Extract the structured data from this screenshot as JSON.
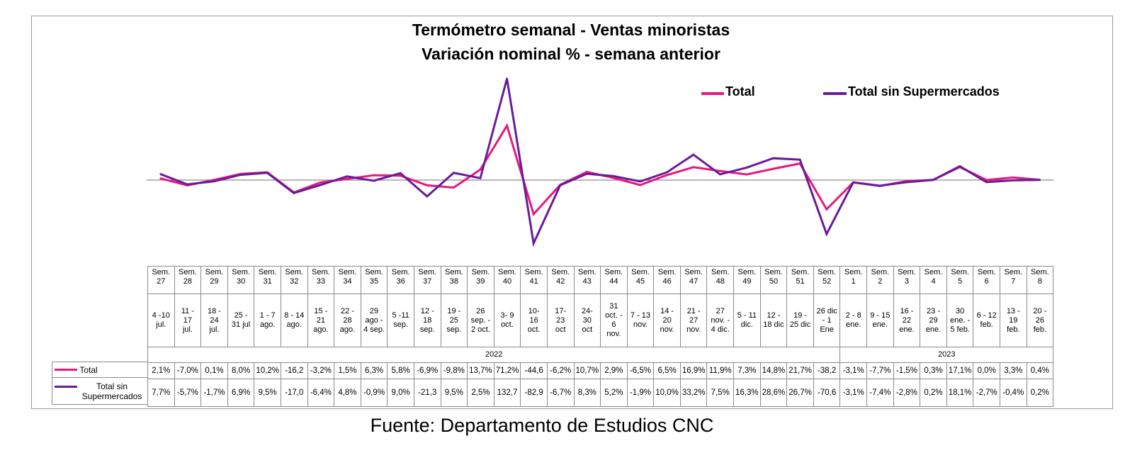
{
  "chart_data": {
    "type": "line",
    "title": "Termómetro semanal - Ventas minoristas",
    "subtitle": "Variación nominal % - semana anterior",
    "weeks": [
      "Sem.\n27",
      "Sem.\n28",
      "Sem.\n29",
      "Sem.\n30",
      "Sem.\n31",
      "Sem.\n32",
      "Sem.\n33",
      "Sem.\n34",
      "Sem.\n35",
      "Sem.\n36",
      "Sem.\n37",
      "Sem.\n38",
      "Sem.\n39",
      "Sem.\n40",
      "Sem.\n41",
      "Sem.\n42",
      "Sem.\n43",
      "Sem.\n44",
      "Sem.\n45",
      "Sem.\n46",
      "Sem.\n47",
      "Sem.\n48",
      "Sem.\n49",
      "Sem.\n50",
      "Sem.\n51",
      "Sem.\n52",
      "Sem.\n1",
      "Sem.\n2",
      "Sem.\n3",
      "Sem.\n4",
      "Sem.\n5",
      "Sem.\n6",
      "Sem.\n7",
      "Sem.\n8"
    ],
    "ranges": [
      "4 -10\njul.",
      "11 -\n17\njul.",
      "18 -\n24\njul.",
      "25 -\n31 jul",
      "1 - 7\nago.",
      "8 - 14\nago.",
      "15 -\n21\nago.",
      "22 -\n28\nago.",
      "29\nago -\n4 sep.",
      "5 -11\nsep.",
      "12 -\n18\nsep.",
      "19 -\n25\nsep.",
      "26\nsep. -\n2 oct.",
      "3- 9\noct.",
      "10-\n16\noct.",
      "17-\n23\noct",
      "24-\n30\noct",
      "31\noct. -\n6\nnov.",
      "7 - 13\nnov.",
      "14 -\n20\nnov.",
      "21 -\n27\nnov.",
      "27\nnov. -\n4 dic.",
      "5 - 11\ndic.",
      "12 -\n18 dic",
      "19 -\n25 dic",
      "26 dic\n- 1\nEne",
      "2 - 8\nene.",
      "9 - 15\nene.",
      "16 -\n22\nene.",
      "23 -\n29\nene.",
      "30\nene. -\n5 feb.",
      "6 - 12\nfeb.",
      "13 -\n19\nfeb.",
      "20 -\n26\nfeb."
    ],
    "years": [
      {
        "label": "2022",
        "span": 26
      },
      {
        "label": "2023",
        "span": 8
      }
    ],
    "series": [
      {
        "name": "Total",
        "color": "#e6197d",
        "values": [
          2.1,
          -7.0,
          0.1,
          8.0,
          10.2,
          -16.2,
          -3.2,
          1.5,
          6.3,
          5.8,
          -6.9,
          -9.8,
          13.7,
          71.2,
          -44.6,
          -6.2,
          10.7,
          2.9,
          -6.5,
          6.5,
          16.9,
          11.9,
          7.3,
          14.8,
          21.7,
          -38.2,
          -3.1,
          -7.7,
          -1.5,
          0.3,
          17.1,
          0.0,
          3.3,
          0.4
        ],
        "labels": [
          "2,1%",
          "-7,0%",
          "0,1%",
          "8,0%",
          "10,2%",
          "-16,2",
          "-3,2%",
          "1,5%",
          "6,3%",
          "5,8%",
          "-6,9%",
          "-9,8%",
          "13,7%",
          "71,2%",
          "-44,6",
          "-6,2%",
          "10,7%",
          "2,9%",
          "-6,5%",
          "6,5%",
          "16,9%",
          "11,9%",
          "7,3%",
          "14,8%",
          "21,7%",
          "-38,2",
          "-3,1%",
          "-7,7%",
          "-1,5%",
          "0,3%",
          "17,1%",
          "0,0%",
          "3,3%",
          "0,4%"
        ]
      },
      {
        "name": "Total sin Supermercados",
        "table_label": "Total sin\nSupermercados",
        "color": "#6a1b9a",
        "values": [
          7.7,
          -5.7,
          -1.7,
          6.9,
          9.5,
          -17.0,
          -6.4,
          4.8,
          -0.9,
          9.0,
          -21.3,
          9.5,
          2.5,
          132.7,
          -82.9,
          -6.7,
          8.3,
          5.2,
          -1.9,
          10.0,
          33.2,
          7.5,
          16.3,
          28.6,
          26.7,
          -70.6,
          -3.1,
          -7.4,
          -2.8,
          0.2,
          18.1,
          -2.7,
          -0.4,
          0.2
        ],
        "labels": [
          "7,7%",
          "-5,7%",
          "-1,7%",
          "6,9%",
          "9,5%",
          "-17,0",
          "-6,4%",
          "4,8%",
          "-0,9%",
          "9,0%",
          "-21,3",
          "9,5%",
          "2,5%",
          "132,7",
          "-82,9",
          "-6,7%",
          "8,3%",
          "5,2%",
          "-1,9%",
          "10,0%",
          "33,2%",
          "7,5%",
          "16,3%",
          "28,6%",
          "26,7%",
          "-70,6",
          "-3,1%",
          "-7,4%",
          "-2,8%",
          "0,2%",
          "18,1%",
          "-2,7%",
          "-0,4%",
          "0,2%"
        ]
      }
    ],
    "ylim": [
      -85,
      134
    ],
    "grid": false,
    "legend": "top-right"
  },
  "source": "Fuente: Departamento de Estudios CNC"
}
